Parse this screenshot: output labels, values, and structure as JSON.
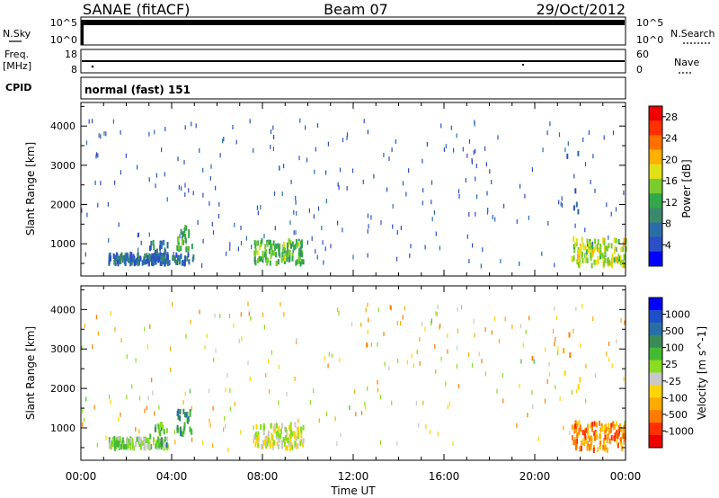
{
  "header": {
    "station": "SANAE (fitACF)",
    "beam": "Beam 07",
    "date": "29/Oct/2012"
  },
  "info_panels": {
    "nsky": {
      "left_label": "N.Sky",
      "ticks": [
        "10^5",
        "10^0"
      ],
      "right_ticks": [
        "10^5",
        "10^0"
      ],
      "right_label": "N.Search"
    },
    "freq": {
      "left_label_1": "Freq.",
      "left_label_2": "[MHz]",
      "ticks": [
        "18",
        "8"
      ],
      "right_ticks": [
        "60",
        "0"
      ],
      "right_label": "Nave"
    },
    "cpid": {
      "label": "CPID",
      "value": "normal (fast) 151"
    }
  },
  "colors": {
    "power_scale": [
      "#0000ff",
      "#2b4fc4",
      "#2a6ea8",
      "#3a8a6a",
      "#33a84a",
      "#7acc2e",
      "#e0e018",
      "#ffb000",
      "#ff7000",
      "#ff3000",
      "#ee0000"
    ],
    "velocity_scale": [
      "#0000ff",
      "#1f4fc8",
      "#2a6ea8",
      "#3a8a5a",
      "#44bb33",
      "#88dd22",
      "#c8c8c8",
      "#ffd400",
      "#ffaa00",
      "#ff7a00",
      "#ff3000",
      "#ee0000"
    ]
  },
  "chart_data": [
    {
      "type": "heatmap",
      "name": "power",
      "title": "",
      "xlabel": "Time UT",
      "ylabel": "Slant Range [km]",
      "x_ticks": [
        "00:00",
        "04:00",
        "08:00",
        "12:00",
        "16:00",
        "20:00",
        "00:00"
      ],
      "xlim_hours": [
        0,
        24
      ],
      "y_ticks": [
        1000,
        2000,
        3000,
        4000
      ],
      "ylim": [
        180,
        4600
      ],
      "colorbar": {
        "label": "Power [dB]",
        "ticks": [
          "4",
          "8",
          "12",
          "16",
          "20",
          "24",
          "28"
        ],
        "range": [
          0,
          30
        ]
      },
      "regions": [
        {
          "t0": 1.2,
          "t1": 3.8,
          "r0": 550,
          "r1": 800,
          "level": 0.18,
          "density": 0.8
        },
        {
          "t0": 3.0,
          "t1": 3.8,
          "r0": 600,
          "r1": 1200,
          "level": 0.25,
          "density": 0.5
        },
        {
          "t0": 4.2,
          "t1": 4.9,
          "r0": 900,
          "r1": 1500,
          "level": 0.4,
          "density": 0.7
        },
        {
          "t0": 3.5,
          "t1": 5.0,
          "r0": 550,
          "r1": 800,
          "level": 0.2,
          "density": 0.4
        },
        {
          "t0": 7.6,
          "t1": 9.8,
          "r0": 550,
          "r1": 1150,
          "level": 0.45,
          "density": 0.85
        },
        {
          "t0": 21.6,
          "t1": 24,
          "r0": 500,
          "r1": 1200,
          "level": 0.55,
          "density": 0.9
        },
        {
          "t0": 21.2,
          "t1": 22.0,
          "r0": 1800,
          "r1": 3500,
          "level": 0.1,
          "density": 0.12
        }
      ]
    },
    {
      "type": "heatmap",
      "name": "velocity",
      "title": "",
      "xlabel": "Time UT",
      "ylabel": "Slant Range [km]",
      "x_ticks": [
        "00:00",
        "04:00",
        "08:00",
        "12:00",
        "16:00",
        "20:00",
        "00:00"
      ],
      "xlim_hours": [
        0,
        24
      ],
      "y_ticks": [
        1000,
        2000,
        3000,
        4000
      ],
      "ylim": [
        180,
        4600
      ],
      "colorbar": {
        "label": "Velocity [m s^-1]",
        "ticks": [
          "1000",
          "500",
          "100",
          "25",
          "-25",
          "-100",
          "-500",
          "-1000"
        ]
      },
      "regions": [
        {
          "t0": 1.2,
          "t1": 3.8,
          "r0": 550,
          "r1": 800,
          "level": 0.45,
          "density": 0.8
        },
        {
          "t0": 3.0,
          "t1": 3.8,
          "r0": 600,
          "r1": 1200,
          "level": 0.35,
          "density": 0.4
        },
        {
          "t0": 4.2,
          "t1": 4.9,
          "r0": 900,
          "r1": 1500,
          "level": 0.28,
          "density": 0.7
        },
        {
          "t0": 7.6,
          "t1": 9.8,
          "r0": 550,
          "r1": 1150,
          "level": 0.55,
          "density": 0.85
        },
        {
          "t0": 21.6,
          "t1": 24,
          "r0": 500,
          "r1": 1200,
          "level": 0.78,
          "density": 0.9
        },
        {
          "t0": 21.2,
          "t1": 22.0,
          "r0": 1800,
          "r1": 3500,
          "level": 0.7,
          "density": 0.12
        }
      ]
    }
  ]
}
